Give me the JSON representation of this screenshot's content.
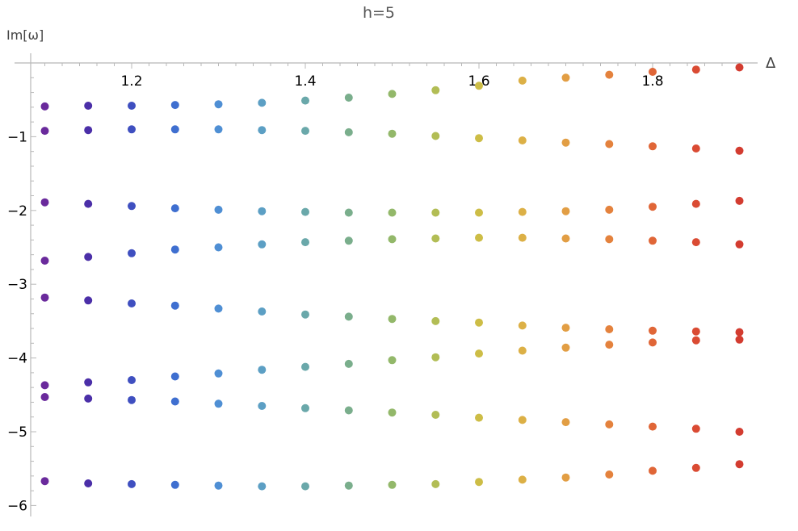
{
  "chart_data": {
    "type": "scatter",
    "title": "h=5",
    "xlabel": "Δ",
    "ylabel": "Im[ω]",
    "xlim": [
      1.085,
      1.905
    ],
    "ylim": [
      -6.08,
      0.1
    ],
    "x_ticks": [
      1.2,
      1.4,
      1.6,
      1.8
    ],
    "x_tick_labels": [
      "1.2",
      "1.4",
      "1.6",
      "1.8"
    ],
    "y_ticks": [
      -1,
      -2,
      -3,
      -4,
      -5,
      -6
    ],
    "y_tick_labels": [
      "−1",
      "−2",
      "−3",
      "−4",
      "−5",
      "−6"
    ],
    "grid": false,
    "legend": "none",
    "colors": [
      "#6a2a9c",
      "#4b2fa8",
      "#3f4fc0",
      "#3f6fd0",
      "#4f8fd4",
      "#5c9fc4",
      "#6aa8aa",
      "#7aae8c",
      "#93b86a",
      "#b2bd55",
      "#cdbd46",
      "#dcb046",
      "#e29e44",
      "#e4823d",
      "#e06637",
      "#da4b33",
      "#d33c30"
    ],
    "x": [
      1.1,
      1.15,
      1.2,
      1.25,
      1.3,
      1.35,
      1.4,
      1.45,
      1.5,
      1.55,
      1.6,
      1.65,
      1.7,
      1.75,
      1.8,
      1.85,
      1.9
    ],
    "series": [
      {
        "values": [
          -0.59,
          -0.58,
          -0.58,
          -0.57,
          -0.56,
          -0.54,
          -0.51,
          -0.47,
          -0.42,
          -0.37,
          -0.31,
          -0.24,
          -0.2,
          -0.16,
          -0.12,
          -0.09,
          -0.06
        ]
      },
      {
        "values": [
          -0.92,
          -0.91,
          -0.9,
          -0.9,
          -0.9,
          -0.91,
          -0.92,
          -0.94,
          -0.96,
          -0.99,
          -1.02,
          -1.05,
          -1.08,
          -1.1,
          -1.13,
          -1.16,
          -1.19
        ]
      },
      {
        "values": [
          -1.89,
          -1.91,
          -1.94,
          -1.97,
          -1.99,
          -2.01,
          -2.02,
          -2.03,
          -2.03,
          -2.03,
          -2.03,
          -2.02,
          -2.01,
          -1.99,
          -1.95,
          -1.91,
          -1.87
        ]
      },
      {
        "values": [
          -2.68,
          -2.63,
          -2.58,
          -2.53,
          -2.5,
          -2.46,
          -2.43,
          -2.41,
          -2.39,
          -2.38,
          -2.37,
          -2.37,
          -2.38,
          -2.39,
          -2.41,
          -2.43,
          -2.46
        ]
      },
      {
        "values": [
          -3.18,
          -3.22,
          -3.26,
          -3.29,
          -3.33,
          -3.37,
          -3.41,
          -3.44,
          -3.47,
          -3.5,
          -3.52,
          -3.56,
          -3.59,
          -3.61,
          -3.63,
          -3.64,
          -3.65
        ]
      },
      {
        "values": [
          -4.37,
          -4.33,
          -4.3,
          -4.25,
          -4.21,
          -4.16,
          -4.12,
          -4.08,
          -4.03,
          -3.99,
          -3.94,
          -3.9,
          -3.86,
          -3.82,
          -3.79,
          -3.76,
          -3.75
        ]
      },
      {
        "values": [
          -4.53,
          -4.55,
          -4.57,
          -4.59,
          -4.62,
          -4.65,
          -4.68,
          -4.71,
          -4.74,
          -4.77,
          -4.81,
          -4.84,
          -4.87,
          -4.9,
          -4.93,
          -4.96,
          -5.0
        ]
      },
      {
        "values": [
          -5.67,
          -5.7,
          -5.71,
          -5.72,
          -5.73,
          -5.74,
          -5.74,
          -5.73,
          -5.72,
          -5.71,
          -5.68,
          -5.65,
          -5.62,
          -5.58,
          -5.53,
          -5.49,
          -5.44
        ]
      }
    ]
  }
}
